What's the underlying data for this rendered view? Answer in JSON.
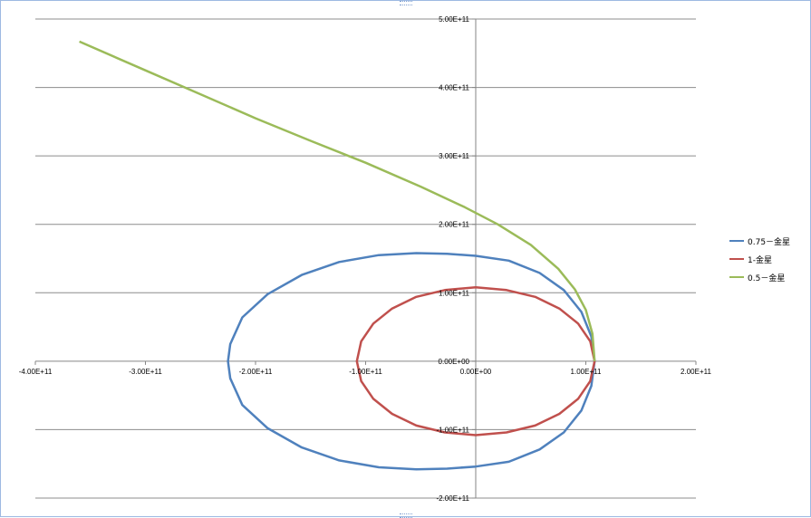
{
  "chart_data": {
    "type": "scatter",
    "title": "",
    "xlabel": "",
    "ylabel": "",
    "xlim": [
      -400000000000.0,
      200000000000.0
    ],
    "ylim": [
      -200000000000.0,
      500000000000.0
    ],
    "x_ticks": [
      -400000000000.0,
      -300000000000.0,
      -200000000000.0,
      -100000000000.0,
      0,
      100000000000.0,
      200000000000.0
    ],
    "x_tick_labels": [
      "-4.00E+11",
      "-3.00E+11",
      "-2.00E+11",
      "-1.00E+11",
      "0.00E+00",
      "1.00E+11",
      "2.00E+11"
    ],
    "y_ticks": [
      -200000000000.0,
      -100000000000.0,
      0,
      100000000000.0,
      200000000000.0,
      300000000000.0,
      400000000000.0,
      500000000000.0
    ],
    "y_tick_labels": [
      "-2.00E+11",
      "-1.00E+11",
      "0.00E+00",
      "1.00E+11",
      "2.00E+11",
      "3.00E+11",
      "4.00E+11",
      "5.00E+11"
    ],
    "grid": "horizontal",
    "legend_position": "right",
    "series": [
      {
        "name": "0.75－金星",
        "color": "#4f81bd",
        "points": [
          [
            108000000000.0,
            0
          ],
          [
            105000000000.0,
            36000000000.0
          ],
          [
            96000000000.0,
            72000000000.0
          ],
          [
            80000000000.0,
            104000000000.0
          ],
          [
            58000000000.0,
            129000000000.0
          ],
          [
            30000000000.0,
            147000000000.0
          ],
          [
            0,
            154000000000.0
          ],
          [
            -26000000000.0,
            157000000000.0
          ],
          [
            -54000000000.0,
            158000000000.0
          ],
          [
            -88000000000.0,
            155000000000.0
          ],
          [
            -124000000000.0,
            145000000000.0
          ],
          [
            -158000000000.0,
            126000000000.0
          ],
          [
            -189000000000.0,
            98000000000.0
          ],
          [
            -212000000000.0,
            64000000000.0
          ],
          [
            -223000000000.0,
            25000000000.0
          ],
          [
            -225000000000.0,
            0
          ],
          [
            -223000000000.0,
            -25000000000.0
          ],
          [
            -212000000000.0,
            -64000000000.0
          ],
          [
            -189000000000.0,
            -98000000000.0
          ],
          [
            -158000000000.0,
            -126000000000.0
          ],
          [
            -124000000000.0,
            -145000000000.0
          ],
          [
            -88000000000.0,
            -155000000000.0
          ],
          [
            -54000000000.0,
            -158000000000.0
          ],
          [
            -26000000000.0,
            -157000000000.0
          ],
          [
            0,
            -154000000000.0
          ],
          [
            30000000000.0,
            -147000000000.0
          ],
          [
            58000000000.0,
            -129000000000.0
          ],
          [
            80000000000.0,
            -104000000000.0
          ],
          [
            96000000000.0,
            -72000000000.0
          ],
          [
            105000000000.0,
            -36000000000.0
          ],
          [
            108000000000.0,
            0
          ]
        ]
      },
      {
        "name": "1-金星",
        "color": "#c0504d",
        "points": [
          [
            108000000000.0,
            0
          ],
          [
            104000000000.0,
            29000000000.0
          ],
          [
            93000000000.0,
            55000000000.0
          ],
          [
            76000000000.0,
            77000000000.0
          ],
          [
            54000000000.0,
            94000000000.0
          ],
          [
            28000000000.0,
            104000000000.0
          ],
          [
            0,
            108000000000.0
          ],
          [
            -28000000000.0,
            104000000000.0
          ],
          [
            -54000000000.0,
            94000000000.0
          ],
          [
            -76000000000.0,
            77000000000.0
          ],
          [
            -93000000000.0,
            55000000000.0
          ],
          [
            -104000000000.0,
            29000000000.0
          ],
          [
            -108000000000.0,
            0
          ],
          [
            -104000000000.0,
            -29000000000.0
          ],
          [
            -93000000000.0,
            -55000000000.0
          ],
          [
            -76000000000.0,
            -77000000000.0
          ],
          [
            -54000000000.0,
            -94000000000.0
          ],
          [
            -28000000000.0,
            -104000000000.0
          ],
          [
            0,
            -108000000000.0
          ],
          [
            28000000000.0,
            -104000000000.0
          ],
          [
            54000000000.0,
            -94000000000.0
          ],
          [
            76000000000.0,
            -77000000000.0
          ],
          [
            93000000000.0,
            -55000000000.0
          ],
          [
            104000000000.0,
            -29000000000.0
          ],
          [
            108000000000.0,
            0
          ]
        ]
      },
      {
        "name": "0.5－金星",
        "color": "#9bbb59",
        "points": [
          [
            108000000000.0,
            0
          ],
          [
            106000000000.0,
            40000000000.0
          ],
          [
            100000000000.0,
            75000000000.0
          ],
          [
            90000000000.0,
            105000000000.0
          ],
          [
            75000000000.0,
            135000000000.0
          ],
          [
            50000000000.0,
            170000000000.0
          ],
          [
            20000000000.0,
            200000000000.0
          ],
          [
            -10000000000.0,
            225000000000.0
          ],
          [
            -50000000000.0,
            255000000000.0
          ],
          [
            -100000000000.0,
            290000000000.0
          ],
          [
            -150000000000.0,
            322000000000.0
          ],
          [
            -200000000000.0,
            355000000000.0
          ],
          [
            -250000000000.0,
            390000000000.0
          ],
          [
            -300000000000.0,
            425000000000.0
          ],
          [
            -360000000000.0,
            467000000000.0
          ]
        ]
      }
    ]
  }
}
